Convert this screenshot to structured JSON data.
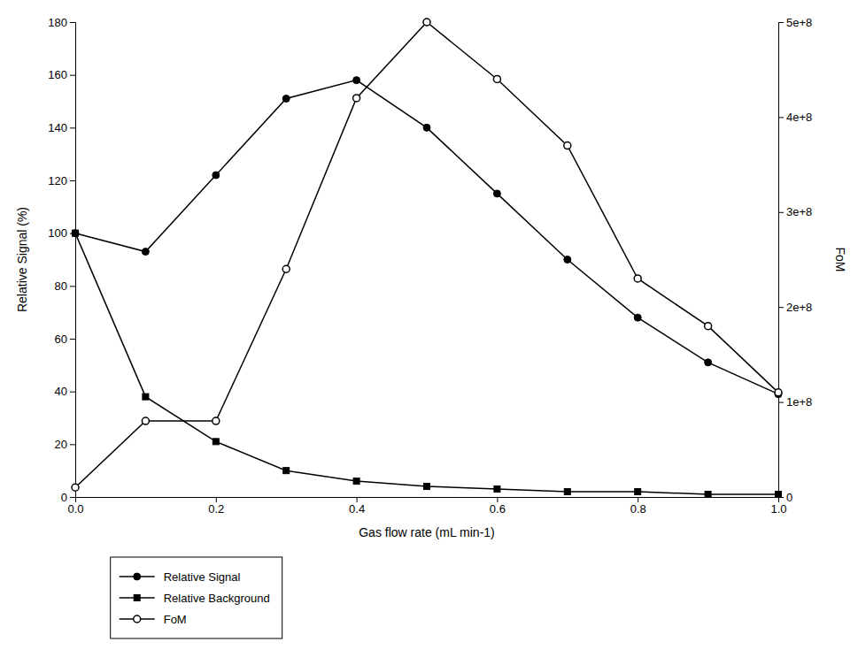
{
  "chart_data": {
    "type": "line",
    "x": [
      0.0,
      0.1,
      0.2,
      0.3,
      0.4,
      0.5,
      0.6,
      0.7,
      0.8,
      0.9,
      1.0
    ],
    "xlim": [
      0.0,
      1.0
    ],
    "xticks": [
      {
        "value": 0.0,
        "label": "0.0"
      },
      0.2,
      0.4,
      0.6,
      0.8,
      {
        "value": 1.0,
        "label": "1.0"
      }
    ],
    "ylim": [
      0,
      180
    ],
    "yticks": [
      0,
      20,
      40,
      60,
      80,
      100,
      120,
      140,
      160,
      180
    ],
    "y2lim": [
      0,
      500000000
    ],
    "y2ticks": [
      0,
      {
        "value": 100000000,
        "label": "1e+8"
      },
      {
        "value": 200000000,
        "label": "2e+8"
      },
      {
        "value": 300000000,
        "label": "3e+8"
      },
      {
        "value": 400000000,
        "label": "4e+8"
      },
      {
        "value": 500000000,
        "label": "5e+8"
      }
    ],
    "xlabel": "Gas flow rate (mL min-1)",
    "ylabel": "Relative Signal (%)",
    "y2label": "FoM",
    "grid": false,
    "legend": "below",
    "series": [
      {
        "name": "Relative Signal",
        "color": "#000000",
        "marker": "circle",
        "values": [
          100,
          93,
          122,
          151,
          158,
          140,
          115,
          90,
          68,
          51,
          39
        ]
      },
      {
        "name": "Relative Background",
        "color": "#000000",
        "marker": "square",
        "values": [
          100,
          38,
          21,
          10,
          6,
          4,
          3,
          2,
          2,
          1,
          1
        ]
      },
      {
        "name": "FoM",
        "color": "#000000",
        "marker": "open-circle",
        "axis": "y2",
        "values": [
          10000000.0,
          80000000.0,
          80000000.0,
          240000000.0,
          420000000.0,
          500000000.0,
          440000000.0,
          370000000.0,
          230000000.0,
          180000000.0,
          110000000.0
        ]
      }
    ]
  }
}
